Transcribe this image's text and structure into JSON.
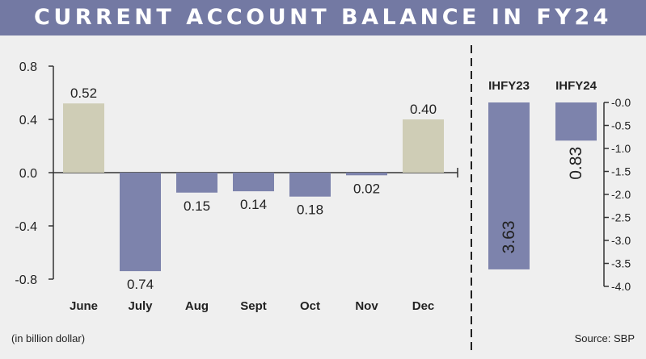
{
  "title": "CURRENT ACCOUNT BALANCE IN FY24",
  "unit_note": "(in billion dollar)",
  "source": "Source: SBP",
  "colors": {
    "positive": "#cfcdb6",
    "negative": "#7d83ac",
    "header": "#7379a3",
    "background": "#efefef"
  },
  "chart_data": [
    {
      "type": "bar",
      "categories": [
        "June",
        "July",
        "Aug",
        "Sept",
        "Oct",
        "Nov",
        "Dec"
      ],
      "values": [
        0.52,
        -0.74,
        -0.15,
        -0.14,
        -0.18,
        -0.02,
        0.4
      ],
      "data_labels": [
        "0.52",
        "0.74",
        "0.15",
        "0.14",
        "0.18",
        "0.02",
        "0.40"
      ],
      "ylim": [
        -0.8,
        0.8
      ],
      "yticks": [
        0.8,
        0.4,
        0.0,
        -0.4,
        -0.8
      ],
      "ytick_labels": [
        "0.8",
        "0.4",
        "0.0",
        "-0.4",
        "-0.8"
      ],
      "xlabel": "",
      "ylabel": "",
      "grid": false,
      "legend": "none"
    },
    {
      "type": "bar",
      "categories": [
        "IHFY23",
        "IHFY24"
      ],
      "values": [
        -3.63,
        -0.83
      ],
      "data_labels": [
        "3.63",
        "0.83"
      ],
      "ylim": [
        -4.0,
        0.0
      ],
      "yticks": [
        0.0,
        -0.5,
        -1.0,
        -1.5,
        -2.0,
        -2.5,
        -3.0,
        -3.5,
        -4.0
      ],
      "ytick_labels": [
        "-0.0",
        "-0.5",
        "-1.0",
        "-1.5",
        "-2.0",
        "-2.5",
        "-3.0",
        "-3.5",
        "-4.0"
      ],
      "y_axis_side": "right",
      "xlabel": "",
      "ylabel": "",
      "grid": false,
      "legend": "none"
    }
  ]
}
